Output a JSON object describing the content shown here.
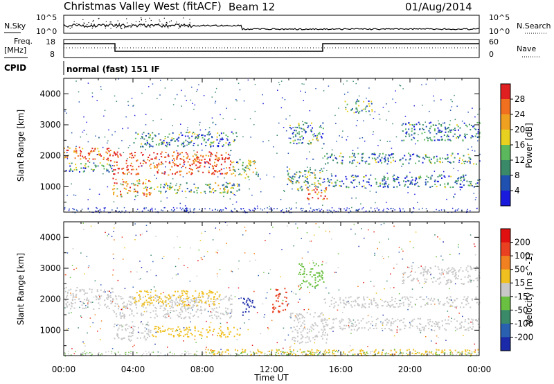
{
  "header": {
    "title": "Christmas Valley West (fitACF)",
    "beam": "Beam 12",
    "date": "01/Aug/2014"
  },
  "nsky_panel": {
    "left_label": "N.Sky",
    "right_label": "N.Search",
    "left_ticks": [
      "10^5",
      "10^0"
    ],
    "right_ticks": [
      "10^5",
      "10^0"
    ]
  },
  "freq_panel": {
    "left_label_line1": "Freq.",
    "left_label_line2": "[MHz]",
    "right_label": "Nave",
    "left_ticks": [
      "18",
      "8"
    ],
    "right_ticks": [
      "60",
      "0"
    ],
    "cpid_label": "CPID",
    "cpid_text": "normal (fast) 151 IF"
  },
  "axes": {
    "ylabel": "Slant Range [km]",
    "xlabel": "Time UT",
    "x_ticks": [
      "00:00",
      "04:00",
      "08:00",
      "12:00",
      "16:00",
      "20:00",
      "00:00"
    ],
    "y_ticks": [
      "1000",
      "2000",
      "3000",
      "4000"
    ]
  },
  "power_colorbar": {
    "label": "Power [dB]",
    "ticks": [
      "4",
      "8",
      "12",
      "16",
      "20",
      "24",
      "28"
    ],
    "colors": [
      "#1a1adc",
      "#2050b0",
      "#3a8a6a",
      "#5cb85c",
      "#e8d020",
      "#f0a020",
      "#f07020",
      "#e02020"
    ]
  },
  "velocity_colorbar": {
    "label": "Velocity [m s^-1]",
    "ticks": [
      "200",
      "100",
      "50",
      "15",
      "-15",
      "-50",
      "-100",
      "-200"
    ],
    "colors": [
      "#1a2aa8",
      "#2a60b0",
      "#3a8a6a",
      "#6ac040",
      "#c8c8c8",
      "#f0c020",
      "#f08020",
      "#e84020",
      "#e01010"
    ]
  },
  "chart_data": [
    {
      "type": "heatmap",
      "name": "power",
      "x_range_hours": [
        0,
        24
      ],
      "y_range_km": [
        180,
        4500
      ],
      "bands": [
        {
          "t0": 0.0,
          "t1": 2.8,
          "r0": 1850,
          "r1": 2300,
          "level": 0.8
        },
        {
          "t0": 0.0,
          "t1": 2.8,
          "r0": 1500,
          "r1": 1800,
          "level": 0.35
        },
        {
          "t0": 2.8,
          "t1": 9.7,
          "r0": 1400,
          "r1": 2150,
          "level": 0.9
        },
        {
          "t0": 2.8,
          "t1": 5.0,
          "r0": 700,
          "r1": 1300,
          "level": 0.7
        },
        {
          "t0": 5.0,
          "t1": 10.2,
          "r0": 800,
          "r1": 1150,
          "level": 0.4
        },
        {
          "t0": 4.0,
          "t1": 10.0,
          "r0": 2300,
          "r1": 2800,
          "level": 0.3
        },
        {
          "t0": 9.7,
          "t1": 11.2,
          "r0": 1300,
          "r1": 1900,
          "level": 0.45
        },
        {
          "t0": 12.8,
          "t1": 15.0,
          "r0": 900,
          "r1": 1600,
          "level": 0.4
        },
        {
          "t0": 14.0,
          "t1": 15.2,
          "r0": 600,
          "r1": 1000,
          "level": 0.85
        },
        {
          "t0": 13.0,
          "t1": 15.0,
          "r0": 2400,
          "r1": 3100,
          "level": 0.3
        },
        {
          "t0": 15.0,
          "t1": 24.0,
          "r0": 1000,
          "r1": 1400,
          "level": 0.25
        },
        {
          "t0": 15.0,
          "t1": 24.0,
          "r0": 1750,
          "r1": 2100,
          "level": 0.3
        },
        {
          "t0": 19.5,
          "t1": 24.0,
          "r0": 2500,
          "r1": 3100,
          "level": 0.25
        },
        {
          "t0": 16.2,
          "t1": 17.8,
          "r0": 3400,
          "r1": 3800,
          "level": 0.35
        }
      ]
    },
    {
      "type": "heatmap",
      "name": "velocity",
      "x_range_hours": [
        0,
        24
      ],
      "y_range_km": [
        180,
        4500
      ],
      "bands": [
        {
          "t0": 0.0,
          "t1": 2.8,
          "r0": 1700,
          "r1": 2400,
          "color": "#c8c8c8"
        },
        {
          "t0": 2.8,
          "t1": 9.7,
          "r0": 1400,
          "r1": 2150,
          "color": "#c8c8c8"
        },
        {
          "t0": 4.0,
          "t1": 9.0,
          "r0": 1800,
          "r1": 2300,
          "color": "#f0c020"
        },
        {
          "t0": 2.8,
          "t1": 5.0,
          "r0": 700,
          "r1": 1300,
          "color": "#c8c8c8"
        },
        {
          "t0": 5.0,
          "t1": 10.2,
          "r0": 800,
          "r1": 1150,
          "color": "#f0c020"
        },
        {
          "t0": 10.3,
          "t1": 11.0,
          "r0": 1500,
          "r1": 2100,
          "color": "#1a2aa8"
        },
        {
          "t0": 12.0,
          "t1": 12.9,
          "r0": 1600,
          "r1": 2400,
          "color": "#e84020"
        },
        {
          "t0": 13.5,
          "t1": 15.0,
          "r0": 2400,
          "r1": 3200,
          "color": "#6ac040"
        },
        {
          "t0": 13.0,
          "t1": 15.2,
          "r0": 600,
          "r1": 1600,
          "color": "#c8c8c8"
        },
        {
          "t0": 15.0,
          "t1": 24.0,
          "r0": 1000,
          "r1": 1400,
          "color": "#c8c8c8"
        },
        {
          "t0": 15.0,
          "t1": 24.0,
          "r0": 1750,
          "r1": 2100,
          "color": "#c8c8c8"
        },
        {
          "t0": 19.5,
          "t1": 24.0,
          "r0": 2500,
          "r1": 3100,
          "color": "#c8c8c8"
        },
        {
          "t0": 8.0,
          "t1": 24.0,
          "r0": 200,
          "r1": 400,
          "color": "#f0c020"
        }
      ]
    }
  ]
}
